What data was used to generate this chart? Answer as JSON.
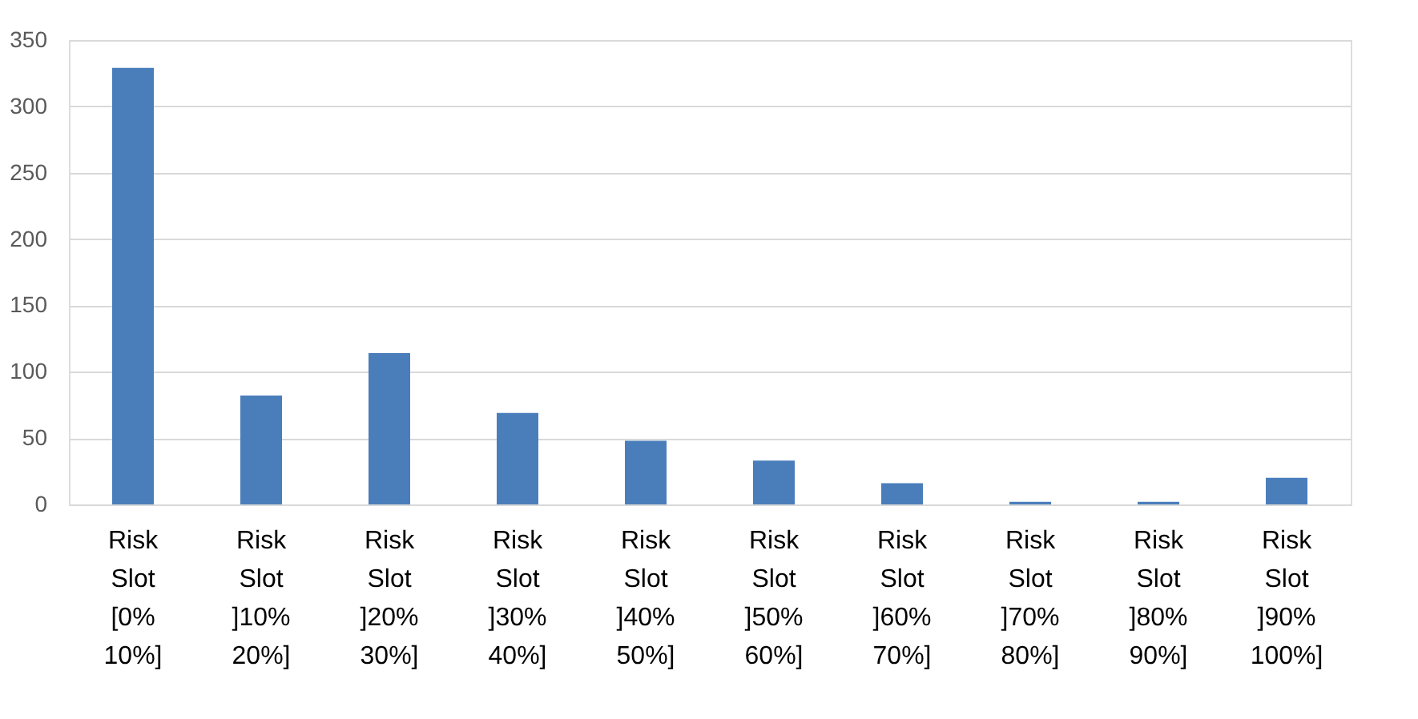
{
  "chart_data": {
    "type": "bar",
    "categories": [
      "Risk Slot [0% 10%]",
      "Risk Slot ]10% 20%]",
      "Risk Slot ]20% 30%]",
      "Risk Slot ]30% 40%]",
      "Risk Slot ]40% 50%]",
      "Risk Slot ]50% 60%]",
      "Risk Slot ]60% 70%]",
      "Risk Slot ]70% 80%]",
      "Risk Slot ]80% 90%]",
      "Risk Slot ]90% 100%]"
    ],
    "values": [
      329,
      82,
      114,
      69,
      48,
      33,
      16,
      2,
      2,
      20
    ],
    "color": "#4a7ebb",
    "ylim": [
      0,
      350
    ],
    "yticks": [
      0,
      50,
      100,
      150,
      200,
      250,
      300,
      350
    ],
    "grid": "y"
  }
}
